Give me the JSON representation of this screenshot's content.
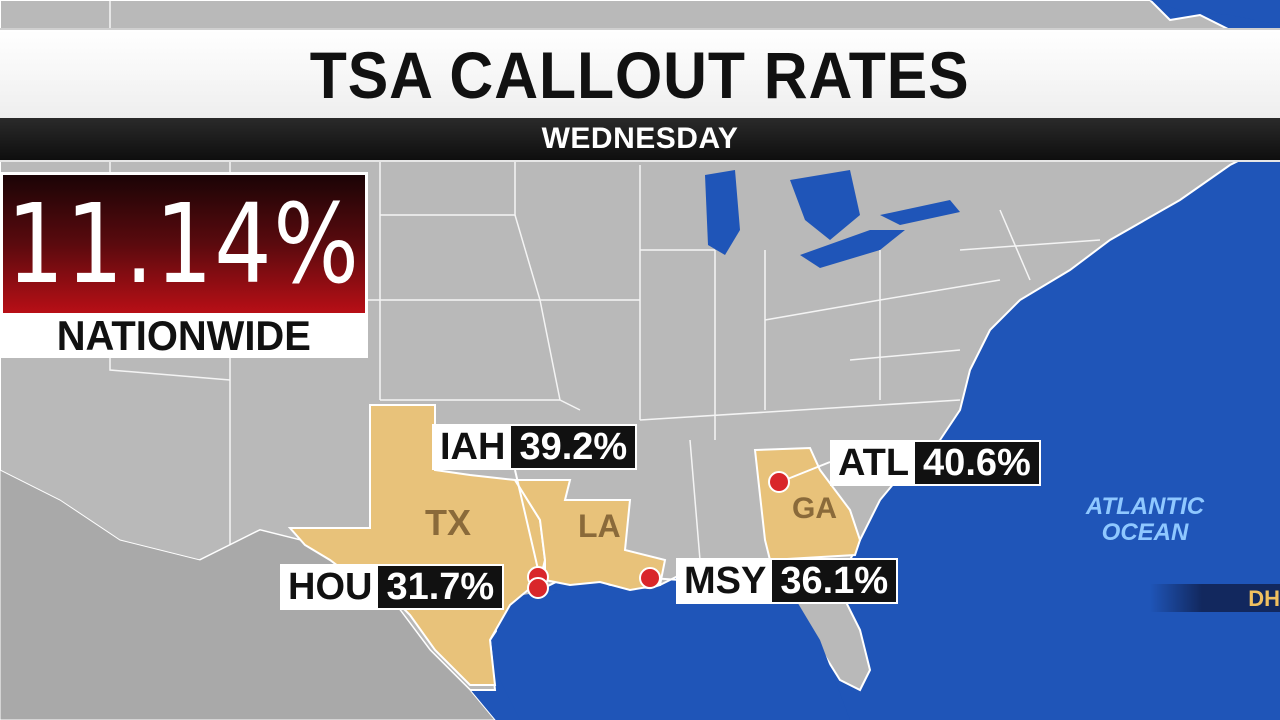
{
  "title": "TSA CALLOUT RATES",
  "subtitle": "WEDNESDAY",
  "nationwide": {
    "value": "11.14%",
    "label": "NATIONWIDE"
  },
  "states": [
    {
      "abbr": "TX"
    },
    {
      "abbr": "LA"
    },
    {
      "abbr": "GA"
    }
  ],
  "callouts": [
    {
      "code": "IAH",
      "rate": "39.2%"
    },
    {
      "code": "ATL",
      "rate": "40.6%"
    },
    {
      "code": "HOU",
      "rate": "31.7%"
    },
    {
      "code": "MSY",
      "rate": "36.1%"
    }
  ],
  "ocean_label": {
    "line1": "ATLANTIC",
    "line2": "OCEAN"
  },
  "ticker_fragment": "DH",
  "colors": {
    "ocean": "#1f55b8",
    "land": "#b9b9b9",
    "highlight_state": "#e8c27a",
    "marker": "#d9262a",
    "nationwide_red": "#b80f16"
  }
}
